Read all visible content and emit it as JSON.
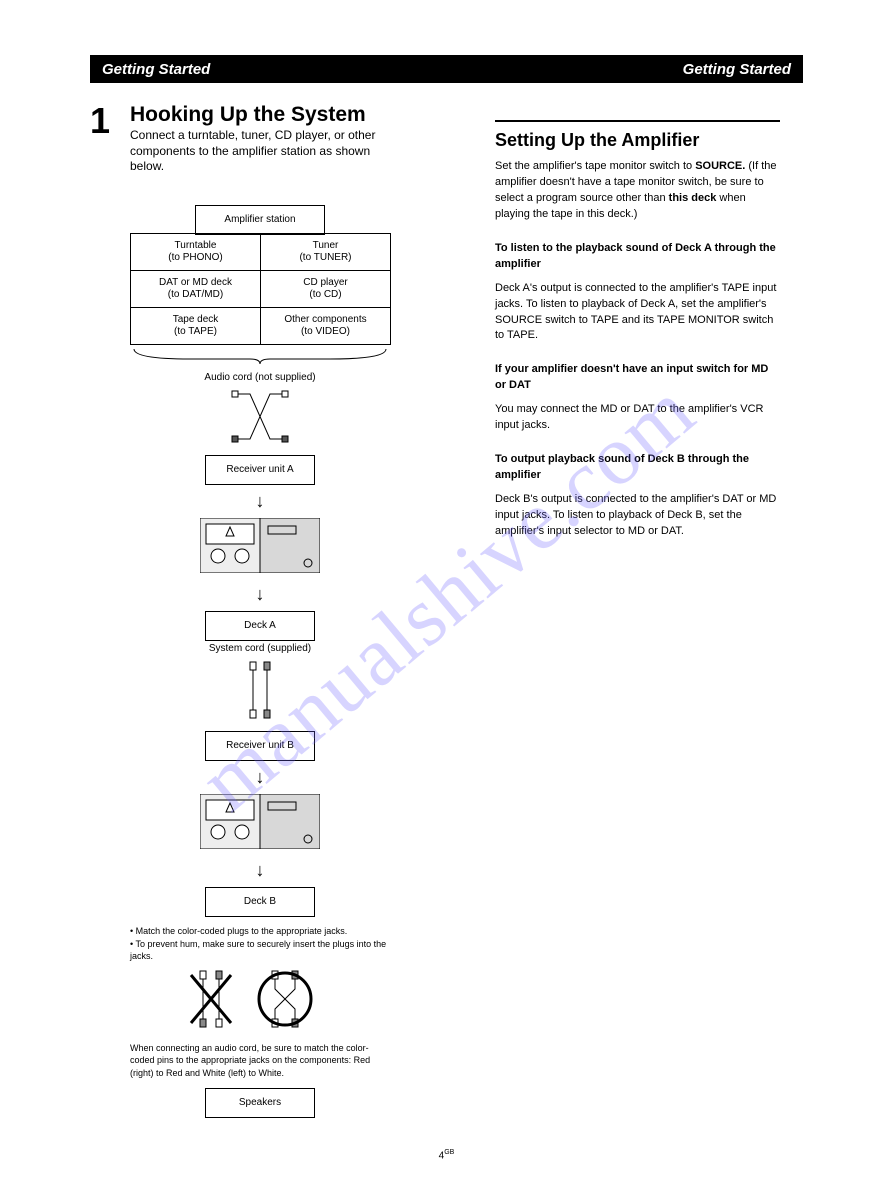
{
  "header": {
    "left": "Getting Started",
    "right": "Getting Started"
  },
  "page_number": "1",
  "main_title": "Hooking Up the System",
  "subtitle_lines": [
    "Connect a turntable, tuner, CD player, or other",
    "components to the amplifier station as shown",
    "below."
  ],
  "diagram": {
    "amp": "Amplifier station",
    "components": [
      "Turntable\n(to PHONO)",
      "Tuner\n(to TUNER)",
      "DAT or MD deck\n(to DAT/MD)",
      "CD player\n(to CD)",
      "Tape deck\n(to TAPE)",
      "Other components\n(to VIDEO)"
    ],
    "audio_cord_label": "Audio cord (not supplied)",
    "receiver1": "Receiver unit A",
    "deckA": "Deck A",
    "system_cord": "System cord (supplied)",
    "receiver2": "Receiver unit B",
    "deckB": "Deck B",
    "speakers": "Speakers"
  },
  "notes": [
    "• Match the color-coded plugs to the appropriate jacks.",
    "• To prevent hum, make sure to securely insert the plugs into the jacks.",
    "When connecting an audio cord, be sure to match the color-coded pins to the appropriate jacks on the components: Red (right) to Red and White (left) to White."
  ],
  "right": {
    "title": "Setting Up the Amplifier",
    "p1": [
      "Set the amplifier's tape monitor switch to ",
      "SOURCE.",
      " (If the amplifier doesn't have a tape monitor switch, be sure to select a program source other than ",
      "this deck",
      " when playing the tape in this deck.)"
    ],
    "sec2_title": "To listen to the playback sound of Deck A through the amplifier",
    "sec2_body": "Deck A's output is connected to the amplifier's TAPE input jacks. To listen to playback of Deck A, set the amplifier's SOURCE switch to TAPE and its TAPE MONITOR switch to TAPE.",
    "sec3_title": "If your amplifier doesn't have an input switch for MD or DAT",
    "sec3_body": "You may connect the MD or DAT to the amplifier's VCR input jacks.",
    "sec4_title": "To output playback sound of Deck B through the amplifier",
    "sec4_body": "Deck B's output is connected to the amplifier's DAT or MD input jacks. To listen to playback of Deck B, set the amplifier's input selector to MD or DAT."
  },
  "footer": {
    "page": "4",
    "superscript": "GB"
  },
  "watermark": "manualshive.com",
  "svg": {
    "rca_cable": "<svg width='60' height='55' viewBox='0 0 60 55'><g stroke='#000' stroke-width='1' fill='none'><path d='M8 5 L20 5 L40 50 L52 50'/><path d='M8 50 L20 50 L40 5 L52 5'/><rect x='2' y='2' width='6' height='6' fill='#fff'/><rect x='2' y='47' width='6' height='6' fill='#555'/><rect x='52' y='2' width='6' height='6' fill='#fff'/><rect x='52' y='47' width='6' height='6' fill='#555'/></g></svg>",
    "deck_pair": "<svg width='120' height='55' viewBox='0 0 120 55'><rect x='0' y='0' width='60' height='55' fill='#eee' stroke='#000'/><rect x='6' y='6' width='48' height='20' fill='#fff' stroke='#000'/><polygon points='30,9 26,18 34,18' fill='none' stroke='#000'/><circle cx='18' cy='38' r='7' fill='#fff' stroke='#000'/><circle cx='42' cy='38' r='7' fill='#fff' stroke='#000'/><rect x='60' y='0' width='60' height='55' fill='#d8d8d8' stroke='#000'/><circle cx='108' cy='45' r='4' fill='none' stroke='#000'/><rect x='68' y='8' width='28' height='8' fill='none' stroke='#000'/></svg>",
    "system_cord_img": "<svg width='50' height='60' viewBox='0 0 50 60'><g stroke='#000' stroke-width='1' fill='none'><line x1='18' y1='8' x2='18' y2='52'/><line x1='32' y1='8' x2='32' y2='52'/><rect x='15' y='2' width='6' height='8' fill='#fff'/><rect x='29' y='2' width='6' height='8' fill='#888'/><rect x='15' y='50' width='6' height='8' fill='#fff'/><rect x='29' y='50' width='6' height='8' fill='#888'/></g></svg>",
    "wrong_right": "<svg width='150' height='60' viewBox='0 0 150 60'><g stroke='#000' fill='none'><line x1='18' y1='8' x2='18' y2='52'/><line x1='34' y1='8' x2='34' y2='52'/><rect x='15' y='2' width='6' height='8' fill='#fff'/><rect x='31' y='2' width='6' height='8' fill='#888'/><rect x='15' y='50' width='6' height='8' fill='#888'/><rect x='31' y='50' width='6' height='8' fill='#fff'/><line x1='6' y1='6' x2='46' y2='54' stroke-width='3'/><line x1='46' y1='6' x2='6' y2='54' stroke-width='3'/></g><g stroke='#000' fill='none' transform='translate(80,0)'><path d='M10 8 L10 20 L30 40 L30 52'/><path d='M30 8 L30 20 L10 40 L10 52'/><rect x='7' y='2' width='6' height='8' fill='#fff'/><rect x='27' y='2' width='6' height='8' fill='#888'/><rect x='7' y='50' width='6' height='8' fill='#fff'/><rect x='27' y='50' width='6' height='8' fill='#888'/><circle cx='20' cy='30' r='26' stroke-width='3'/></g></svg>",
    "brace": "<svg width='260' height='18' viewBox='0 0 260 18'><path d='M 4 2 Q 4 12 60 12 L 120 12 Q 130 12 130 17 Q 130 12 140 12 L 200 12 Q 256 12 256 2' fill='none' stroke='#000' stroke-width='1'/></svg>"
  }
}
